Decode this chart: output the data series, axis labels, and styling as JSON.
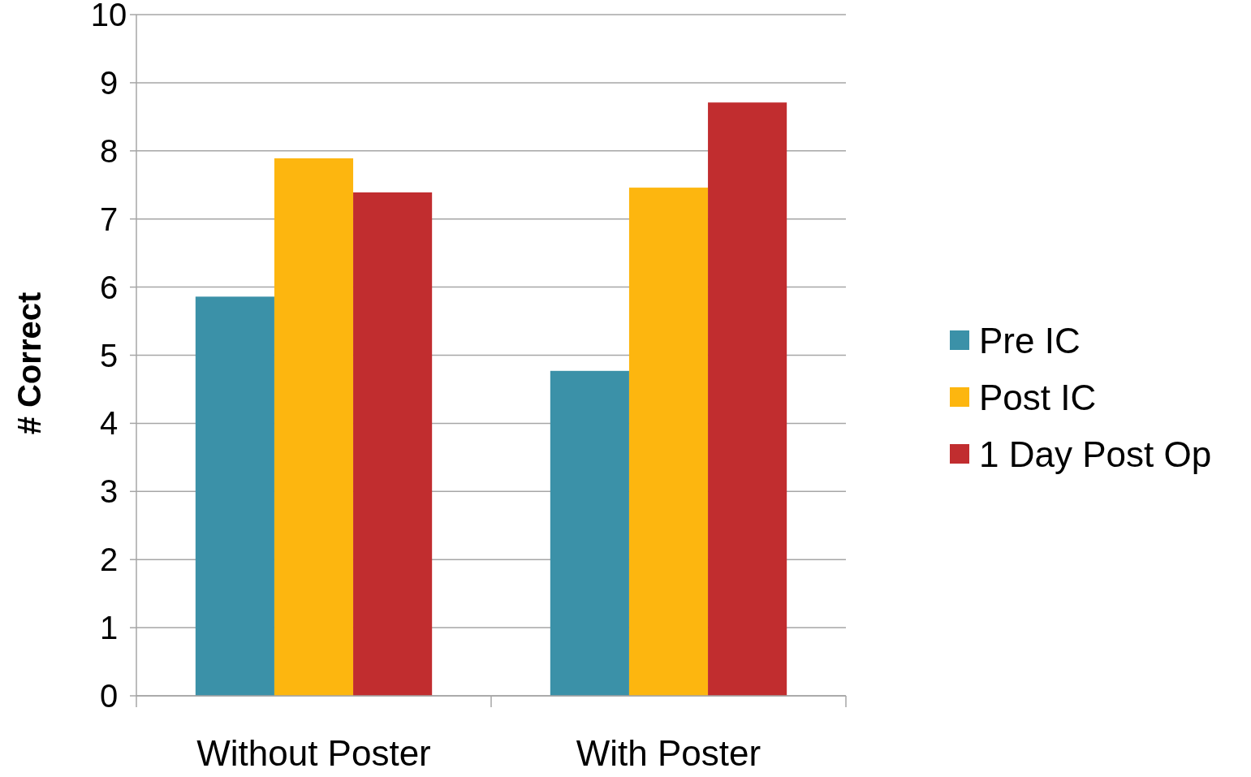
{
  "chart_data": {
    "type": "bar",
    "ylabel": "# Correct",
    "categories": [
      "Without Poster",
      "With Poster"
    ],
    "series": [
      {
        "name": "Pre IC",
        "color": "#3b91a8",
        "values": [
          5.86,
          4.77
        ]
      },
      {
        "name": "Post IC",
        "color": "#fdb60f",
        "values": [
          7.89,
          7.46
        ]
      },
      {
        "name": "1 Day Post Op",
        "color": "#c12d2f",
        "values": [
          7.39,
          8.71
        ]
      }
    ],
    "ylim": [
      0,
      10
    ],
    "yticks": [
      0,
      1,
      2,
      3,
      4,
      5,
      6,
      7,
      8,
      9,
      10
    ],
    "grid": "y",
    "legend": "right"
  }
}
